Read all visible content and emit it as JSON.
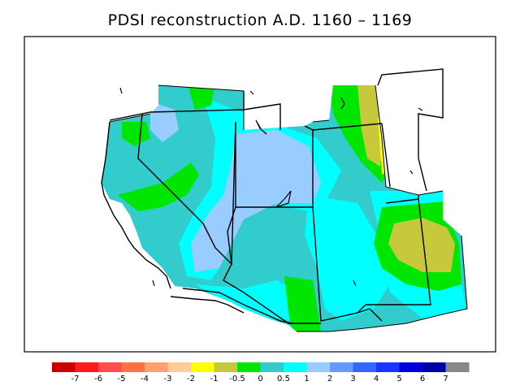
{
  "title": "PDSI reconstruction A.D. 1160 – 1169",
  "colorbar": {
    "colors": [
      "#cc0000",
      "#ff1a1a",
      "#ff4d4d",
      "#ff7043",
      "#ffa070",
      "#ffcc99",
      "#ffff00",
      "#c8c83c",
      "#00e600",
      "#33cccc",
      "#00ffff",
      "#99ccff",
      "#6699ff",
      "#3366ff",
      "#1a33ff",
      "#0000dd",
      "#0000aa",
      "#888888"
    ],
    "labels": [
      "-7",
      "-6",
      "-5",
      "-4",
      "-3",
      "-2",
      "-1",
      "-0.5",
      "0",
      "0.5",
      "1",
      "2",
      "3",
      "4",
      "5",
      "6",
      "7"
    ]
  },
  "palette": {
    "green": "#00e600",
    "teal": "#33cccc",
    "cyan": "#00ffff",
    "lightblue": "#99ccff",
    "olive": "#c8c83c",
    "yellow": "#ffff00"
  }
}
